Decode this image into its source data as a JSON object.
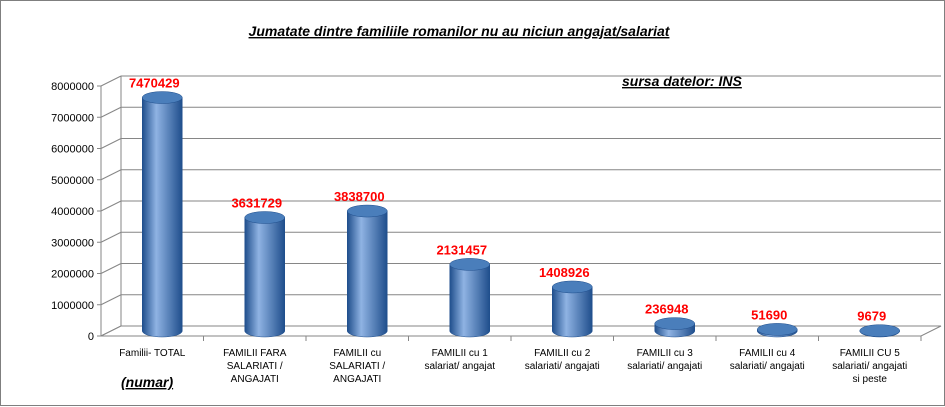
{
  "chart_data": {
    "type": "bar",
    "style": "3d-cylinder",
    "title": "Jumatate dintre familiile romanilor nu au niciun angajat/salariat",
    "source_note": "sursa datelor: INS",
    "unit_label": "(numar)",
    "categories": [
      [
        "Familii- TOTAL"
      ],
      [
        "FAMILII FARA",
        "SALARIATI /",
        "ANGAJATI"
      ],
      [
        "FAMILII cu",
        "SALARIATI /",
        "ANGAJATI"
      ],
      [
        "FAMILII cu 1",
        "salariat/ angajat"
      ],
      [
        "FAMILII cu 2",
        "salariati/ angajati"
      ],
      [
        "FAMILII cu 3",
        "salariati/ angajati"
      ],
      [
        "FAMILII  cu  4",
        "salariati/ angajati"
      ],
      [
        "FAMILII CU 5",
        "salariati/ angajati",
        "si peste"
      ]
    ],
    "values": [
      7470429,
      3631729,
      3838700,
      2131457,
      1408926,
      236948,
      51690,
      9679
    ],
    "data_labels": [
      "7470429",
      "3631729",
      "3838700",
      "2131457",
      "1408926",
      "236948",
      "51690",
      "9679"
    ],
    "ylim": [
      0,
      8000000
    ],
    "yticks": [
      "0",
      "1000000",
      "2000000",
      "3000000",
      "4000000",
      "5000000",
      "6000000",
      "7000000",
      "8000000"
    ],
    "grid": true,
    "legend": "none",
    "colors": {
      "bar": "#4a7ebb",
      "bar_dark": "#1f4e8c",
      "bar_light": "#8fb3e3",
      "data_label": "#ff0000",
      "grid": "#868686",
      "axis": "#868686"
    }
  }
}
